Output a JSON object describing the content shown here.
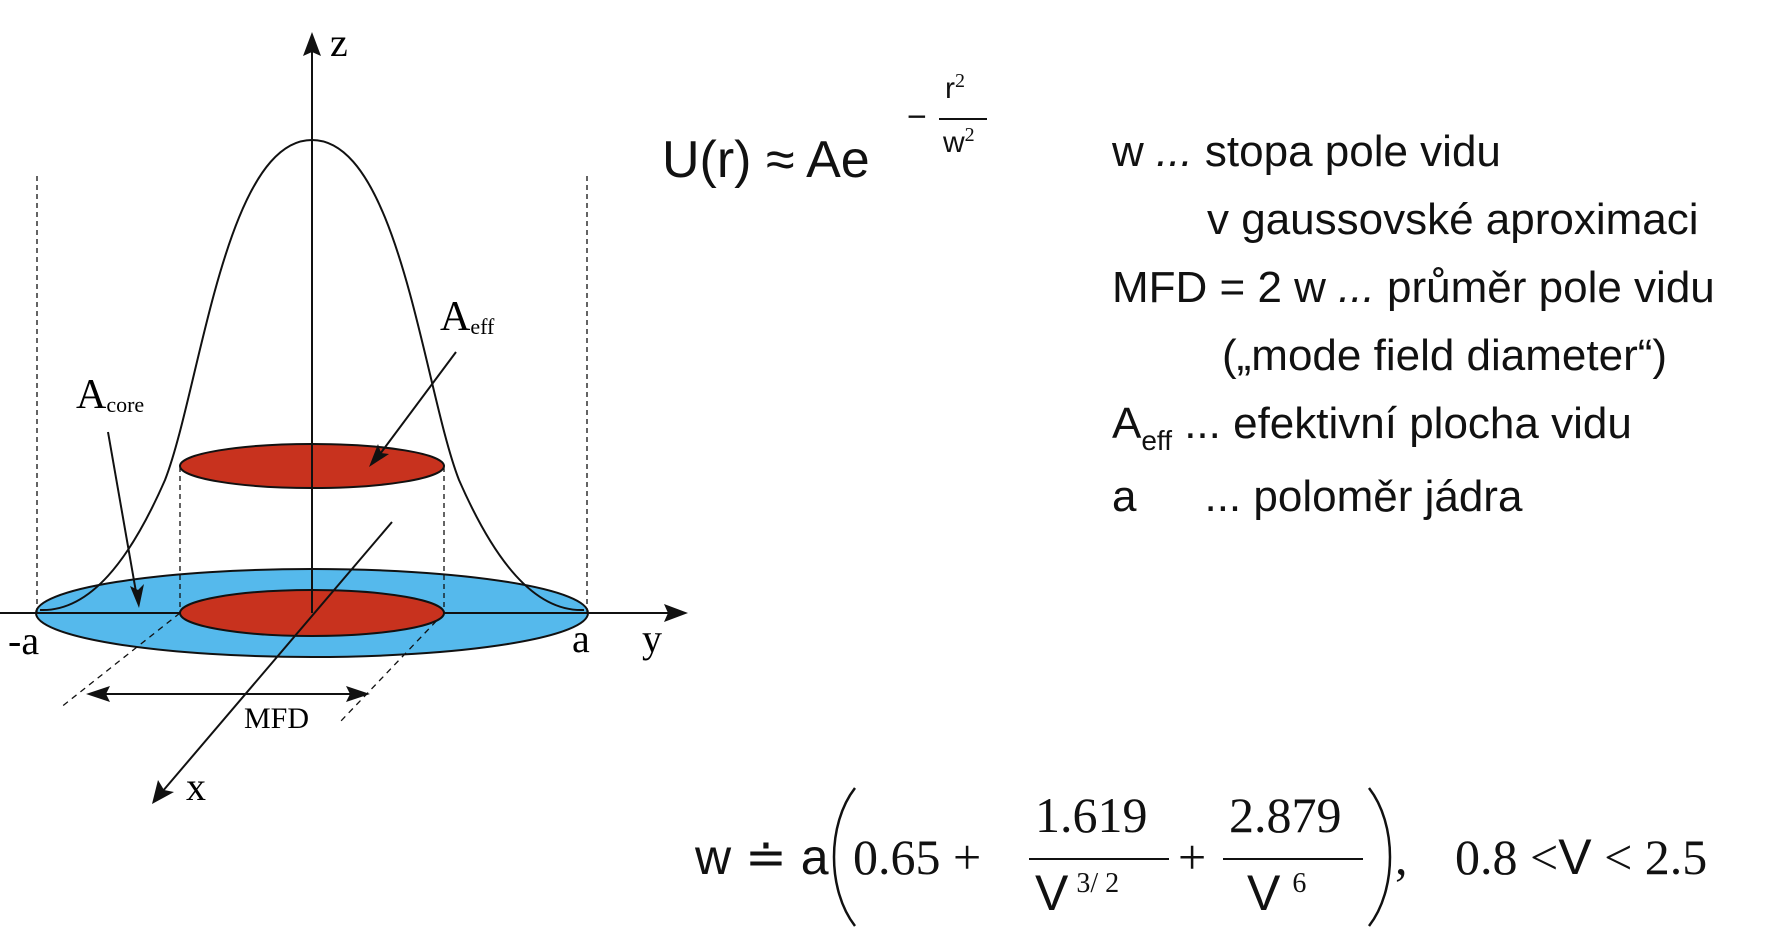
{
  "diagram": {
    "axis_labels": {
      "z": "z",
      "y": "y",
      "x": "x"
    },
    "tick_labels": {
      "neg_a": "-a",
      "pos_a": "a"
    },
    "labels": {
      "a_core_main": "A",
      "a_core_sub": "core",
      "a_eff_main": "A",
      "a_eff_sub": "eff",
      "mfd": "MFD"
    },
    "colors": {
      "core_disc": "#55b9ec",
      "mode_disc": "#c8321e",
      "stroke": "#111111"
    }
  },
  "formula1": {
    "lhs": "U(r) ≈ Ae",
    "exp_minus": "−",
    "exp_num": "r",
    "exp_num_pow": "2",
    "exp_den": "w",
    "exp_den_pow": "2"
  },
  "legend": {
    "line1_sym": "w",
    "line1_dots": " ...",
    "line1_text": " stopa pole vidu",
    "line2": "v gaussovské aproximaci",
    "line3_sym": "MFD = 2 w",
    "line3_dots": " ...",
    "line3_text": " průměr pole vidu",
    "line4": "(„mode field diameter“)",
    "line5_sym": "A",
    "line5_sub": "eff",
    "line5_text": " ... efektivní plocha vidu",
    "line6_sym": "a",
    "line6_text": "... poloměr jádra"
  },
  "formula2": {
    "lhs": "w ≐ a",
    "term1": "0.65 +",
    "frac1_num": "1.619",
    "frac1_den": "V",
    "frac1_den_pow": "3/ 2",
    "plus": "+",
    "frac2_num": "2.879",
    "frac2_den": "V",
    "frac2_den_pow": "6",
    "comma": ",",
    "condition_left": "0.8 <",
    "condition_var": "V",
    "condition_right": " < 2.5"
  }
}
